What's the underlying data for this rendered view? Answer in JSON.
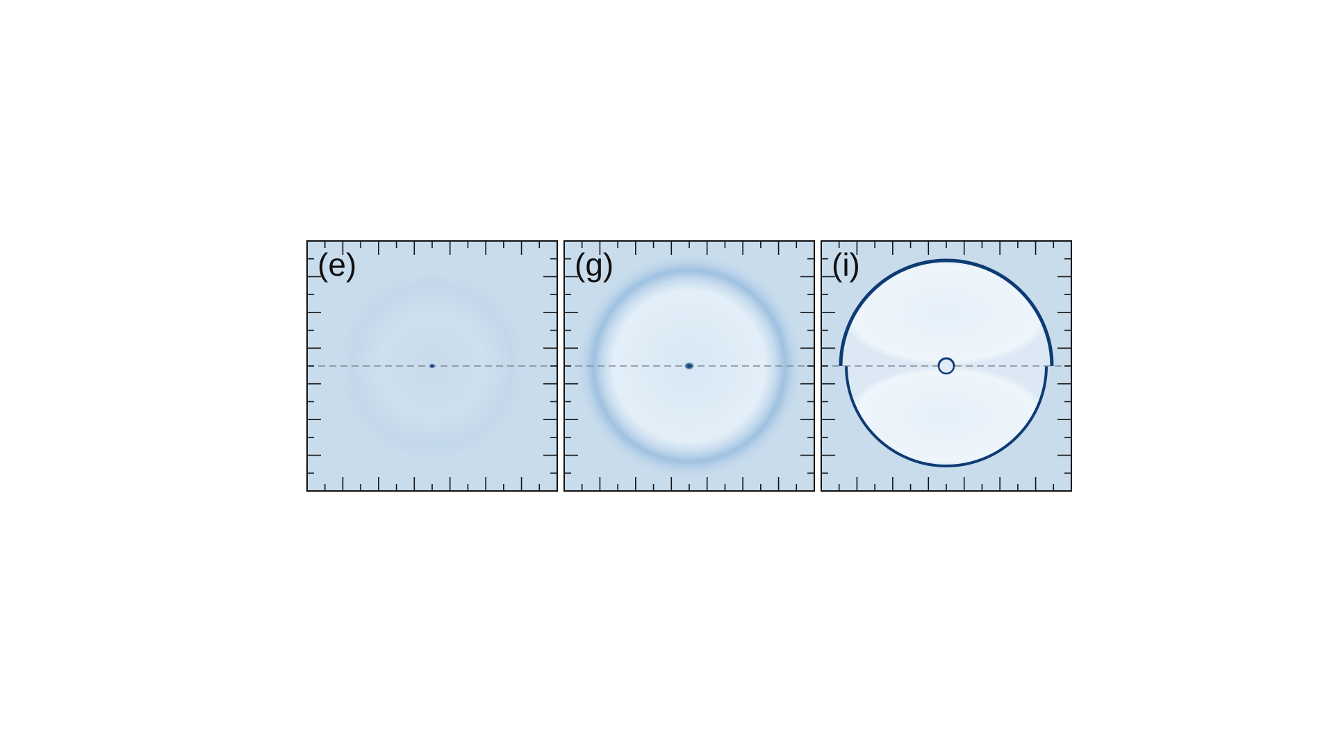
{
  "figure": {
    "panels": [
      {
        "id": "e",
        "label": "(e)",
        "ring": "faint",
        "center": "dot"
      },
      {
        "id": "g",
        "label": "(g)",
        "ring": "diffuse",
        "center": "dot"
      },
      {
        "id": "i",
        "label": "(i)",
        "ring": "sharp",
        "center": "bubble"
      }
    ],
    "colors": {
      "background": "#c9dcec",
      "ring_dark": "#0d3b73",
      "interior_light": "#eef5fb",
      "frame": "#111111",
      "divider": "#7d8a97"
    }
  }
}
